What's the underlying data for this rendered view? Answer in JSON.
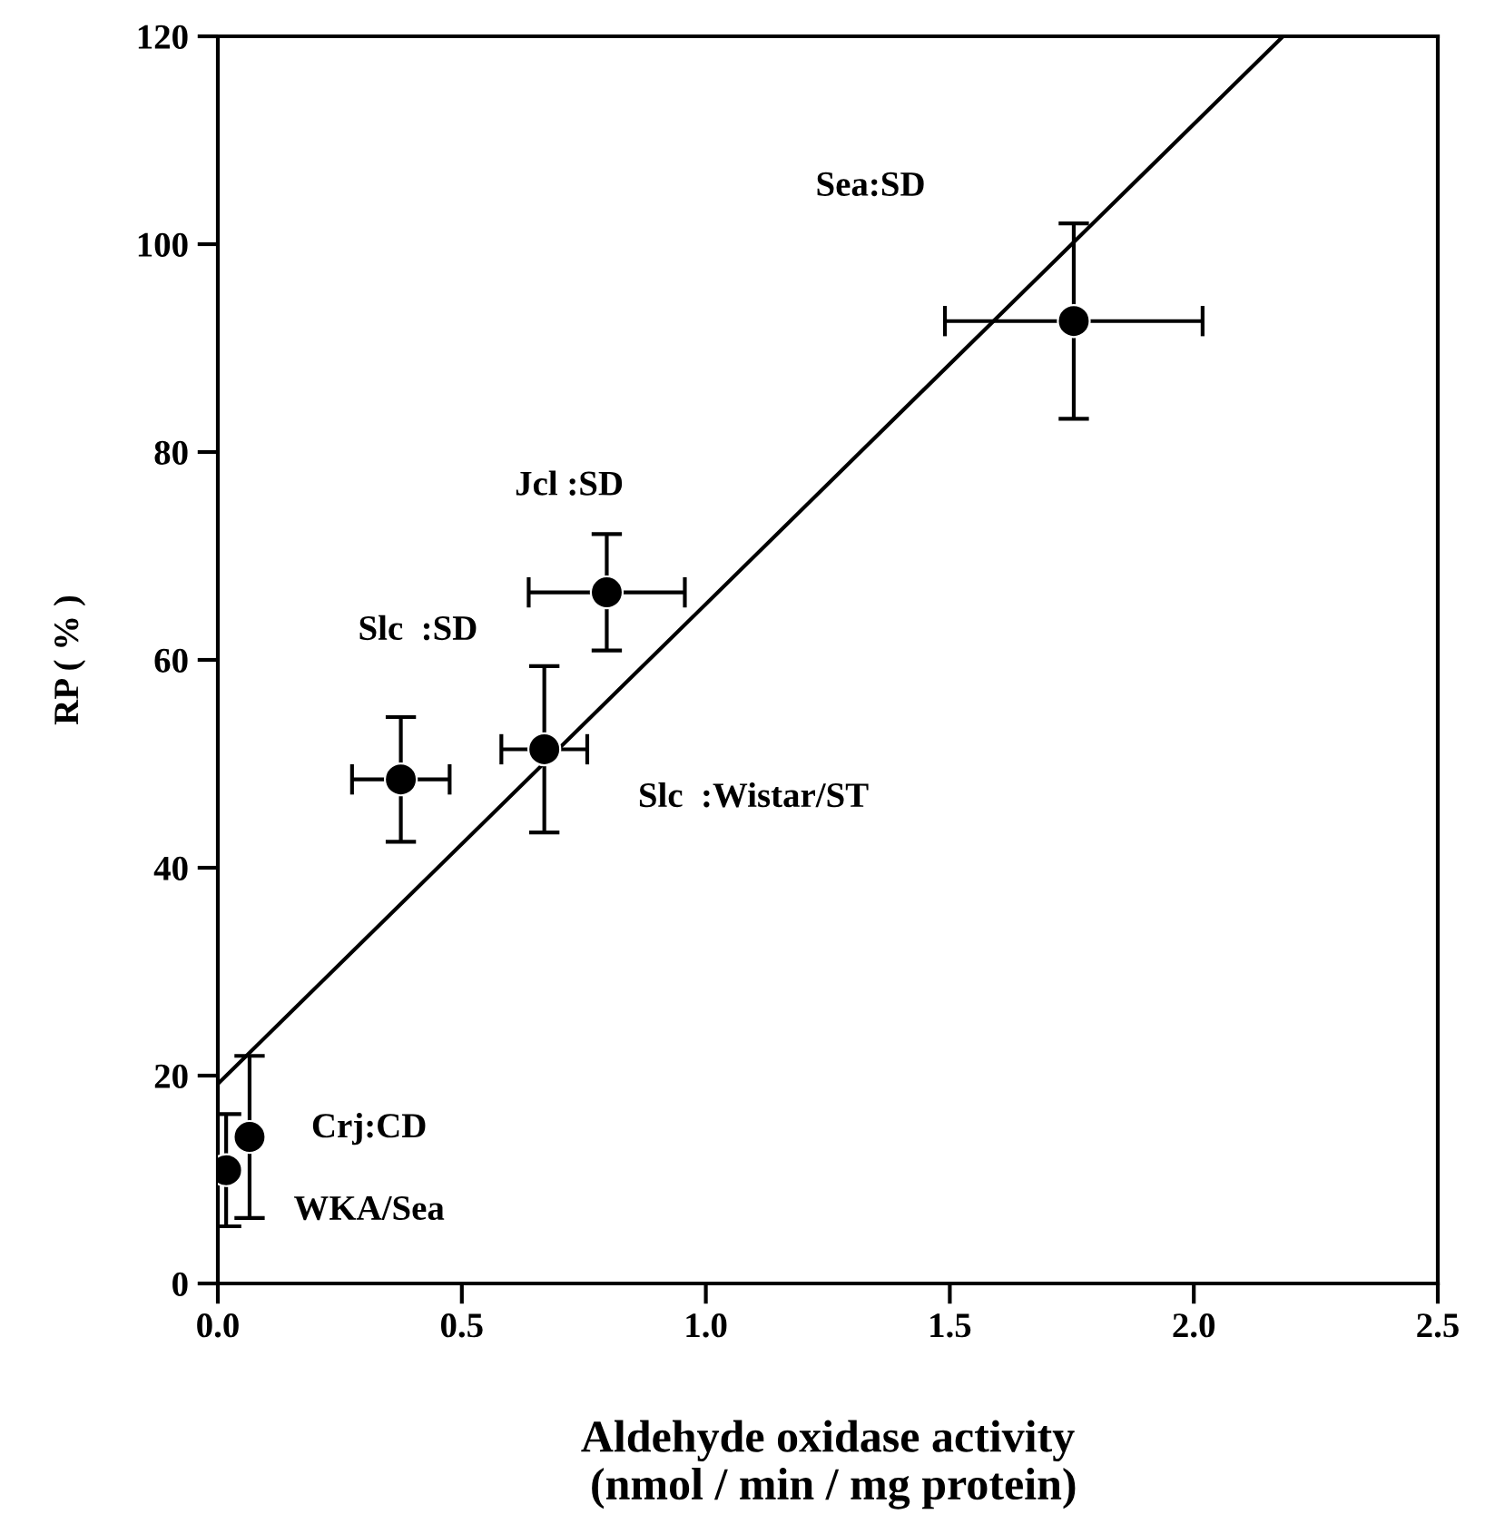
{
  "chart_data": {
    "type": "scatter",
    "xlabel": "Aldehyde oxidase activity\n (nmol / min / mg protein)",
    "ylabel": "RP ( % )",
    "series": [
      {
        "color": "#000000",
        "marker": "circle",
        "x": [
          1.754,
          0.797,
          0.669,
          0.375,
          0.065,
          0.017
        ],
        "values": [
          92.6,
          66.5,
          51.4,
          48.5,
          14.1,
          10.9
        ],
        "errors": [
          9.4,
          5.6,
          8.0,
          6.0,
          7.8,
          5.4
        ],
        "xerrors": [
          0.264,
          0.16,
          0.088,
          0.1,
          null,
          null
        ]
      },
      {
        "type": "line",
        "color": "#000000",
        "x": [
          0.0,
          2.183
        ],
        "values": [
          19.2,
          120.0
        ]
      }
    ],
    "annotations": [
      "Sea:SD",
      "Jcl :SD",
      "Slc  :SD",
      "Slc  :Wistar/ST",
      "Crj:CD",
      "WKA/Sea"
    ],
    "xlim": [
      0,
      2.5
    ],
    "ylim": [
      0,
      120
    ],
    "xticks": [
      {
        "value": 0,
        "label": "0.0"
      },
      {
        "value": 0.5,
        "label": "0.5"
      },
      {
        "value": 1,
        "label": "1.0"
      },
      {
        "value": 1.5,
        "label": "1.5"
      },
      {
        "value": 2,
        "label": "2.0"
      },
      {
        "value": 2.5,
        "label": "2.5"
      }
    ],
    "yticks": [
      0,
      20,
      40,
      60,
      80,
      100,
      120
    ],
    "grid": false,
    "legend": false
  }
}
